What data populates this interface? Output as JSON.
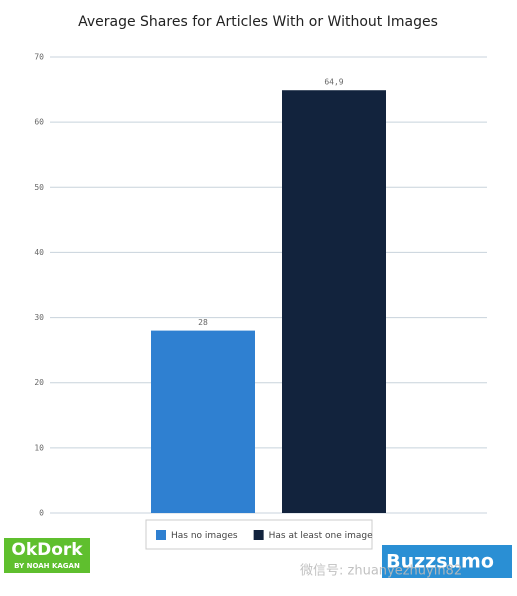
{
  "chart_data": {
    "type": "bar",
    "title": "Average Shares for Articles With or Without Images",
    "series": [
      {
        "name": "Has no images",
        "color": "#2f80d1",
        "values": [
          28
        ]
      },
      {
        "name": "Has at least one image",
        "color": "#12233d",
        "values": [
          64.9
        ],
        "value_labels": [
          "64,9"
        ]
      }
    ],
    "ylim": [
      0,
      70
    ],
    "yticks": [
      0,
      10,
      20,
      30,
      40,
      50,
      60,
      70
    ],
    "grid": true,
    "legend": "bottom"
  },
  "logos": {
    "okdork": "OkDork",
    "okdork_sub": "BY NOAH KAGAN",
    "buzzsumo": "Buzzsumo",
    "watermark": "微信号: zhuanyezhuyin82"
  }
}
